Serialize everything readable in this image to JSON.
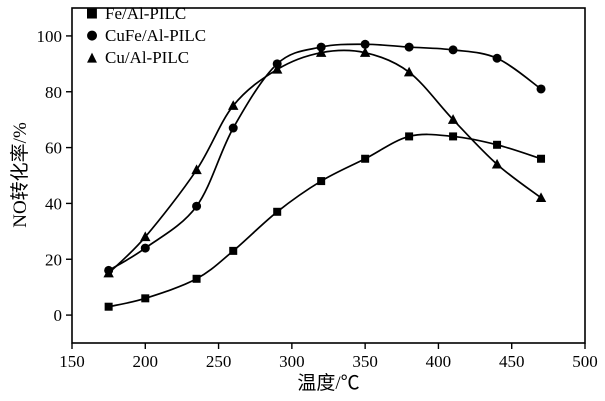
{
  "chart_data": {
    "type": "line",
    "title": "",
    "xlabel": "温度/℃",
    "ylabel": "NO转化率/%",
    "xlim": [
      150,
      500
    ],
    "ylim": [
      -10,
      110
    ],
    "xticks": [
      150,
      200,
      250,
      300,
      350,
      400,
      450,
      500
    ],
    "yticks": [
      0,
      20,
      40,
      60,
      80,
      100
    ],
    "grid": false,
    "legend_position": "upper-left-inside",
    "line_color": "#000000",
    "x": [
      175,
      200,
      235,
      260,
      290,
      320,
      350,
      380,
      410,
      440,
      470
    ],
    "series": [
      {
        "name": "Fe/Al-PILC",
        "marker": "square",
        "marker_glyph": "■",
        "color": "#000000",
        "values": [
          3,
          6,
          13,
          23,
          37,
          48,
          56,
          64,
          64,
          61,
          56
        ]
      },
      {
        "name": "CuFe/Al-PILC",
        "marker": "circle",
        "marker_glyph": "●",
        "color": "#000000",
        "values": [
          16,
          24,
          39,
          67,
          90,
          96,
          97,
          96,
          95,
          92,
          81
        ]
      },
      {
        "name": "Cu/Al-PILC",
        "marker": "triangle-up",
        "marker_glyph": "▲",
        "color": "#000000",
        "values": [
          15,
          28,
          52,
          75,
          88,
          94,
          94,
          87,
          70,
          54,
          42
        ]
      }
    ]
  }
}
